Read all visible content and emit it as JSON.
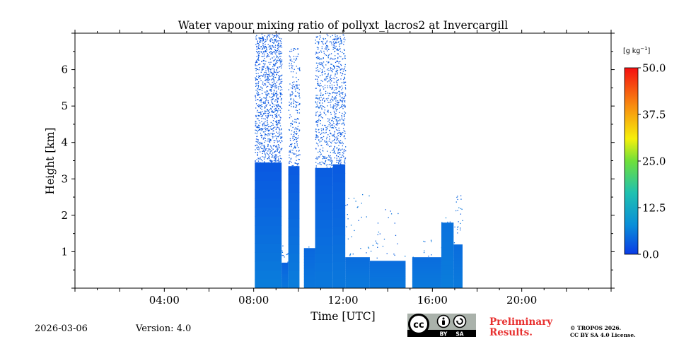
{
  "chart_data": {
    "type": "heatmap",
    "title": "Water vapour mixing ratio of pollyxt_lacros2 at Invercargill",
    "xlabel": "Time [UTC]",
    "ylabel": "Height [km]",
    "xlim_hours": [
      0,
      24
    ],
    "ylim_km": [
      0,
      7
    ],
    "x_ticks": [
      {
        "hour": 4,
        "label": "04:00"
      },
      {
        "hour": 8,
        "label": "08:00"
      },
      {
        "hour": 12,
        "label": "12:00"
      },
      {
        "hour": 16,
        "label": "16:00"
      },
      {
        "hour": 20,
        "label": "20:00"
      }
    ],
    "y_ticks": [
      {
        "km": 1,
        "label": "1"
      },
      {
        "km": 2,
        "label": "2"
      },
      {
        "km": 3,
        "label": "3"
      },
      {
        "km": 4,
        "label": "4"
      },
      {
        "km": 5,
        "label": "5"
      },
      {
        "km": 6,
        "label": "6"
      }
    ],
    "colorbar": {
      "unit_label": "[g kg",
      "unit_sup": "−1",
      "unit_close": "]",
      "range": [
        0,
        50
      ],
      "ticks": [
        {
          "value": 0,
          "label": "0.0"
        },
        {
          "value": 12.5,
          "label": "12.5"
        },
        {
          "value": 25,
          "label": "25.0"
        },
        {
          "value": 37.5,
          "label": "37.5"
        },
        {
          "value": 50,
          "label": "50.0"
        }
      ]
    },
    "segments": [
      {
        "start": 8.05,
        "end": 9.25,
        "dense_top_km": 3.45,
        "sparse_top_km": 7.0,
        "low_value": 6.5,
        "mid_value": 3.0,
        "density": 0.35
      },
      {
        "start": 9.25,
        "end": 9.55,
        "dense_top_km": 0.7,
        "sparse_top_km": 1.2,
        "low_value": 6.0,
        "mid_value": 4.0,
        "density": 0.1
      },
      {
        "start": 9.55,
        "end": 10.05,
        "dense_top_km": 3.35,
        "sparse_top_km": 6.6,
        "low_value": 6.5,
        "mid_value": 3.2,
        "density": 0.2
      },
      {
        "start": 10.25,
        "end": 10.75,
        "dense_top_km": 1.1,
        "sparse_top_km": 1.2,
        "low_value": 6.0,
        "mid_value": 4.5,
        "density": 0.05
      },
      {
        "start": 10.75,
        "end": 11.55,
        "dense_top_km": 3.3,
        "sparse_top_km": 7.0,
        "low_value": 6.0,
        "mid_value": 3.4,
        "density": 0.22
      },
      {
        "start": 11.55,
        "end": 12.1,
        "dense_top_km": 3.4,
        "sparse_top_km": 7.0,
        "low_value": 6.0,
        "mid_value": 3.2,
        "density": 0.28
      },
      {
        "start": 12.1,
        "end": 13.2,
        "dense_top_km": 0.85,
        "sparse_top_km": 2.6,
        "low_value": 6.2,
        "mid_value": 5.0,
        "density": 0.02
      },
      {
        "start": 13.2,
        "end": 14.8,
        "dense_top_km": 0.75,
        "sparse_top_km": 2.2,
        "low_value": 6.0,
        "mid_value": 5.0,
        "density": 0.015
      },
      {
        "start": 15.1,
        "end": 16.4,
        "dense_top_km": 0.85,
        "sparse_top_km": 1.4,
        "low_value": 6.3,
        "mid_value": 5.0,
        "density": 0.02
      },
      {
        "start": 16.4,
        "end": 16.95,
        "dense_top_km": 1.8,
        "sparse_top_km": 2.0,
        "low_value": 6.5,
        "mid_value": 5.5,
        "density": 0.05
      },
      {
        "start": 16.95,
        "end": 17.35,
        "dense_top_km": 1.2,
        "sparse_top_km": 2.8,
        "low_value": 6.2,
        "mid_value": 5.0,
        "density": 0.05
      }
    ]
  },
  "footer": {
    "date": "2026-03-06",
    "version": "Version: 4.0",
    "preliminary_line1": "Preliminary",
    "preliminary_line2": "Results.",
    "copyright_line1": "© TROPOS 2026.",
    "copyright_line2": "CC BY SA 4.0 License.",
    "license_badge": {
      "cc": "cc",
      "by": "BY",
      "sa": "SA"
    }
  },
  "colors": {
    "colormap": [
      "#0a3be6",
      "#0a8fd8",
      "#1fc1b0",
      "#6fe03a",
      "#f6f00a",
      "#f88a10",
      "#f51010"
    ]
  }
}
